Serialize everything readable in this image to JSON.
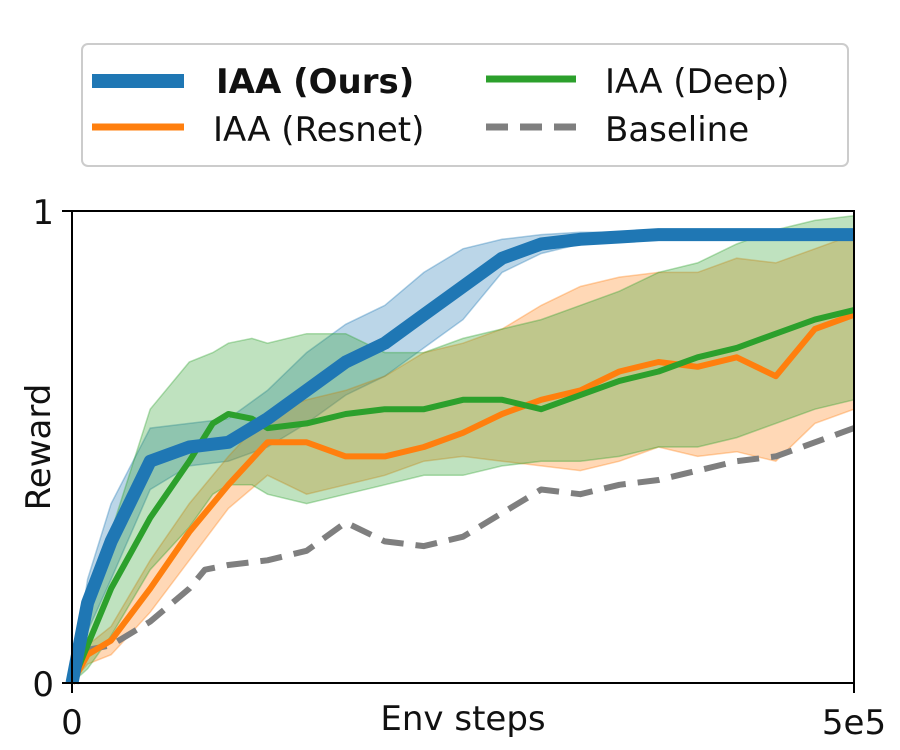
{
  "chart_data": {
    "type": "line",
    "title": "",
    "xlabel": "Env steps",
    "ylabel": "Reward",
    "xlim": [
      0,
      500000
    ],
    "ylim": [
      0,
      1
    ],
    "xtick_labels": [
      "0",
      "5e5"
    ],
    "ytick_labels": [
      "0",
      "1"
    ],
    "grid": false,
    "legend_position": "top",
    "series": [
      {
        "name": "IAA (Ours)",
        "color": "#1f77b4",
        "style": "solid-thick",
        "bold_legend": true,
        "x": [
          0,
          10000,
          25000,
          50000,
          75000,
          100000,
          125000,
          150000,
          175000,
          200000,
          225000,
          250000,
          275000,
          300000,
          325000,
          350000,
          375000,
          400000,
          425000,
          450000,
          475000,
          500000
        ],
        "y": [
          0.0,
          0.17,
          0.3,
          0.47,
          0.5,
          0.51,
          0.56,
          0.62,
          0.68,
          0.72,
          0.78,
          0.84,
          0.9,
          0.93,
          0.94,
          0.945,
          0.95,
          0.95,
          0.95,
          0.95,
          0.95,
          0.95
        ],
        "lower": [
          0.0,
          0.11,
          0.22,
          0.41,
          0.46,
          0.47,
          0.5,
          0.55,
          0.61,
          0.65,
          0.71,
          0.77,
          0.87,
          0.91,
          0.93,
          0.94,
          0.945,
          0.945,
          0.945,
          0.945,
          0.945,
          0.945
        ],
        "upper": [
          0.0,
          0.22,
          0.38,
          0.54,
          0.55,
          0.56,
          0.62,
          0.7,
          0.76,
          0.8,
          0.87,
          0.92,
          0.94,
          0.95,
          0.955,
          0.955,
          0.955,
          0.955,
          0.955,
          0.955,
          0.955,
          0.955
        ]
      },
      {
        "name": "IAA (Resnet)",
        "color": "#ff7f0e",
        "style": "solid",
        "bold_legend": false,
        "x": [
          0,
          10000,
          25000,
          50000,
          75000,
          100000,
          125000,
          150000,
          175000,
          200000,
          225000,
          250000,
          275000,
          300000,
          325000,
          350000,
          375000,
          400000,
          425000,
          450000,
          475000,
          500000
        ],
        "y": [
          0.0,
          0.06,
          0.09,
          0.2,
          0.32,
          0.42,
          0.51,
          0.51,
          0.48,
          0.48,
          0.5,
          0.53,
          0.57,
          0.6,
          0.62,
          0.66,
          0.68,
          0.67,
          0.69,
          0.65,
          0.75,
          0.78
        ],
        "lower": [
          0.0,
          0.04,
          0.06,
          0.15,
          0.26,
          0.37,
          0.44,
          0.4,
          0.42,
          0.44,
          0.47,
          0.48,
          0.47,
          0.46,
          0.45,
          0.47,
          0.5,
          0.48,
          0.49,
          0.47,
          0.55,
          0.58
        ],
        "upper": [
          0.0,
          0.08,
          0.12,
          0.26,
          0.38,
          0.48,
          0.57,
          0.6,
          0.62,
          0.65,
          0.7,
          0.72,
          0.75,
          0.8,
          0.84,
          0.86,
          0.87,
          0.87,
          0.9,
          0.89,
          0.92,
          0.95
        ]
      },
      {
        "name": "IAA (Deep)",
        "color": "#2ca02c",
        "style": "solid",
        "bold_legend": false,
        "x": [
          0,
          10000,
          25000,
          50000,
          75000,
          90000,
          100000,
          115000,
          125000,
          150000,
          175000,
          200000,
          225000,
          250000,
          275000,
          300000,
          325000,
          350000,
          375000,
          400000,
          425000,
          450000,
          475000,
          500000
        ],
        "y": [
          0.0,
          0.08,
          0.2,
          0.35,
          0.47,
          0.55,
          0.57,
          0.56,
          0.54,
          0.55,
          0.57,
          0.58,
          0.58,
          0.6,
          0.6,
          0.58,
          0.61,
          0.64,
          0.66,
          0.69,
          0.71,
          0.74,
          0.77,
          0.79
        ],
        "lower": [
          0.0,
          0.03,
          0.1,
          0.24,
          0.33,
          0.4,
          0.42,
          0.42,
          0.4,
          0.38,
          0.4,
          0.42,
          0.44,
          0.44,
          0.46,
          0.47,
          0.47,
          0.48,
          0.5,
          0.5,
          0.52,
          0.55,
          0.58,
          0.6
        ],
        "upper": [
          0.0,
          0.14,
          0.32,
          0.58,
          0.68,
          0.7,
          0.72,
          0.73,
          0.72,
          0.74,
          0.74,
          0.7,
          0.7,
          0.73,
          0.75,
          0.77,
          0.8,
          0.83,
          0.87,
          0.89,
          0.93,
          0.96,
          0.98,
          0.99
        ]
      },
      {
        "name": "Baseline",
        "color": "#7f7f7f",
        "style": "dashed",
        "bold_legend": false,
        "x": [
          0,
          10000,
          25000,
          50000,
          75000,
          85000,
          100000,
          125000,
          150000,
          175000,
          200000,
          225000,
          250000,
          275000,
          300000,
          325000,
          350000,
          375000,
          400000,
          425000,
          450000,
          475000,
          500000
        ],
        "y": [
          0.0,
          0.07,
          0.08,
          0.13,
          0.2,
          0.24,
          0.25,
          0.26,
          0.28,
          0.34,
          0.3,
          0.29,
          0.31,
          0.36,
          0.41,
          0.4,
          0.42,
          0.43,
          0.45,
          0.47,
          0.48,
          0.51,
          0.54
        ]
      }
    ]
  }
}
